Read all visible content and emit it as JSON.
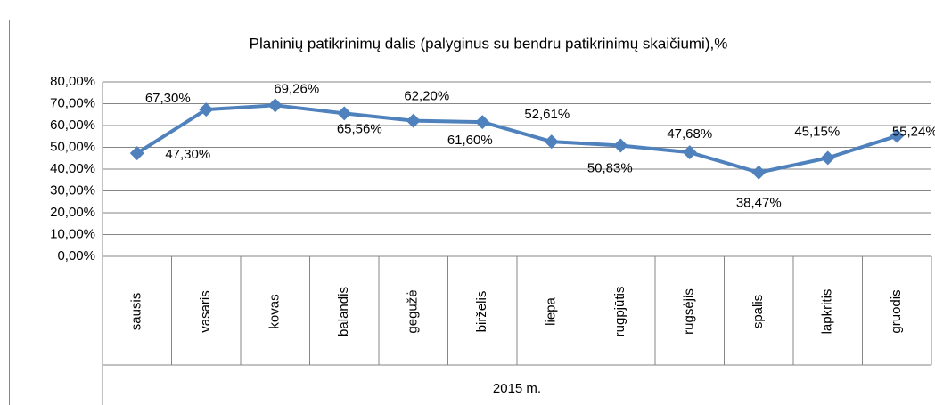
{
  "chart_data": {
    "type": "line",
    "title": "Planinių patikrinimų dalis (palyginus su bendru patikrinimų skaičiumi),%",
    "categories": [
      "sausis",
      "vasaris",
      "kovas",
      "balandis",
      "gegužė",
      "birželis",
      "liepa",
      "rugpjūtis",
      "rugsėjis",
      "spalis",
      "lapkritis",
      "gruodis"
    ],
    "category_group": "2015 m.",
    "series": [
      {
        "color": "#4f81bd",
        "values": [
          47.3,
          67.3,
          69.26,
          65.56,
          62.2,
          61.6,
          52.61,
          50.83,
          47.68,
          38.47,
          45.15,
          55.24
        ],
        "value_labels": [
          "47,30%",
          "67,30%",
          "69,26%",
          "65,56%",
          "62,20%",
          "61,60%",
          "52,61%",
          "50,83%",
          "47,68%",
          "38,47%",
          "45,15%",
          "55,24%"
        ]
      }
    ],
    "ylim": [
      0,
      80
    ],
    "yticks": [
      {
        "value": 0,
        "label": "0,00%"
      },
      {
        "value": 10,
        "label": "10,00%"
      },
      {
        "value": 20,
        "label": "20,00%"
      },
      {
        "value": 30,
        "label": "30,00%"
      },
      {
        "value": 40,
        "label": "40,00%"
      },
      {
        "value": 50,
        "label": "50,00%"
      },
      {
        "value": 60,
        "label": "60,00%"
      },
      {
        "value": 70,
        "label": "70,00%"
      },
      {
        "value": 80,
        "label": "80,00%"
      }
    ],
    "grid": true
  }
}
